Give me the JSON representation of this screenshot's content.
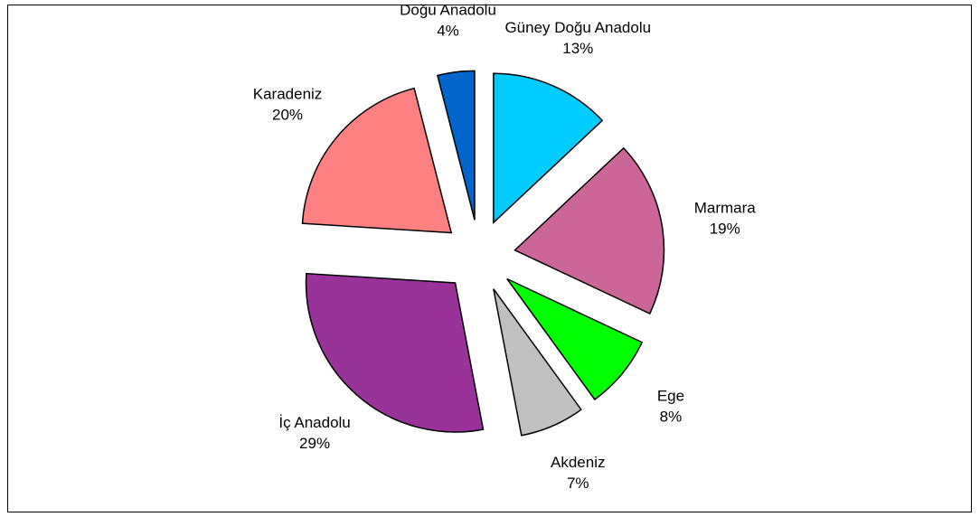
{
  "chart_data": {
    "type": "pie",
    "categories": [
      "Güney Doğu Anadolu",
      "Marmara",
      "Ege",
      "Akdeniz",
      "İç Anadolu",
      "Karadeniz",
      "Doğu Anadolu"
    ],
    "values": [
      13,
      19,
      8,
      7,
      29,
      20,
      4
    ],
    "value_labels": [
      "13%",
      "19%",
      "8%",
      "7%",
      "29%",
      "20%",
      "4%"
    ],
    "colors": [
      "#00ccff",
      "#cc6699",
      "#00ff00",
      "#c0c0c0",
      "#993399",
      "#ff8080",
      "#0066cc"
    ]
  }
}
